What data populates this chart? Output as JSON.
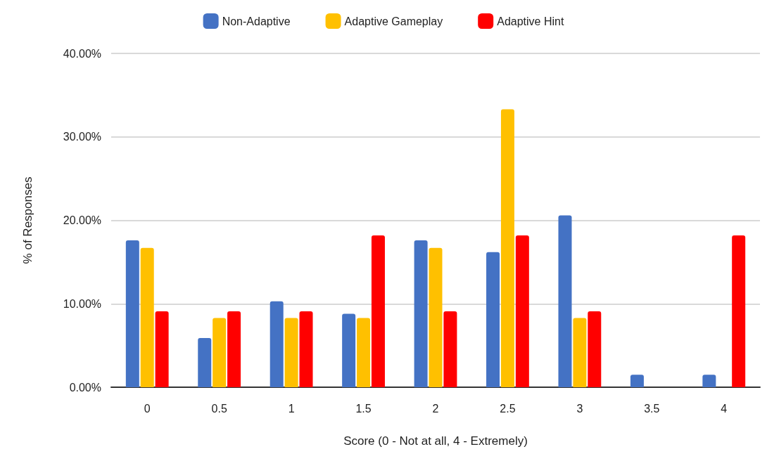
{
  "chart_data": {
    "type": "bar",
    "xlabel": "Score (0 - Not at all, 4 - Extremely)",
    "ylabel": "% of Responses",
    "categories": [
      "0",
      "0.5",
      "1",
      "1.5",
      "2",
      "2.5",
      "3",
      "3.5",
      "4"
    ],
    "series": [
      {
        "name": "Non-Adaptive",
        "color": "#4472c4",
        "values": [
          17.6,
          5.9,
          10.3,
          8.8,
          17.6,
          16.2,
          20.6,
          1.5,
          1.5
        ]
      },
      {
        "name": "Adaptive Gameplay",
        "color": "#ffc000",
        "values": [
          16.7,
          8.3,
          8.3,
          8.3,
          16.7,
          33.3,
          8.3,
          0,
          0
        ]
      },
      {
        "name": "Adaptive Hint",
        "color": "#ff0000",
        "values": [
          9.1,
          9.1,
          9.1,
          18.2,
          9.1,
          18.2,
          9.1,
          0,
          18.2
        ]
      }
    ],
    "ylim": [
      0,
      40
    ],
    "yticks": [
      {
        "value": 0,
        "label": "0.00%"
      },
      {
        "value": 10,
        "label": "10.00%"
      },
      {
        "value": 20,
        "label": "20.00%"
      },
      {
        "value": 30,
        "label": "30.00%"
      },
      {
        "value": 40,
        "label": "40.00%"
      }
    ],
    "grid": "y",
    "legend": "top"
  }
}
